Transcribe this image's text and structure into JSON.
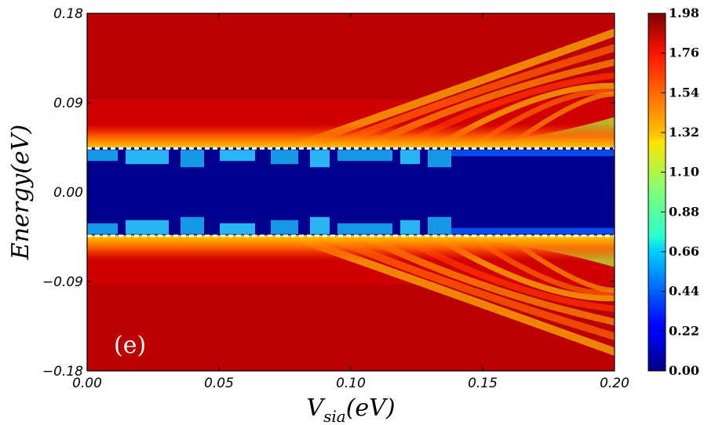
{
  "chart_data": {
    "type": "heatmap",
    "panel_label": "(e)",
    "xlabel": "V_sia(eV)",
    "xlabel_main": "V",
    "xlabel_sub": "sia",
    "xlabel_suffix": "(eV)",
    "ylabel": "Energy(eV)",
    "xlim": [
      0.0,
      0.2
    ],
    "ylim": [
      -0.18,
      0.18
    ],
    "x_ticks": [
      "0.00",
      "0.05",
      "0.10",
      "0.15",
      "0.20"
    ],
    "y_ticks": [
      "0.18",
      "0.09",
      "0.00",
      "−0.09",
      "−0.18"
    ],
    "colorbar": {
      "colormap": "jet",
      "range": [
        0.0,
        1.98
      ],
      "ticks": [
        "1.98",
        "1.76",
        "1.54",
        "1.32",
        "1.10",
        "0.88",
        "0.66",
        "0.44",
        "0.22",
        "0.00"
      ]
    },
    "gap_edges_energy": [
      0.044,
      -0.044
    ],
    "gap_line_color": "#ffffff",
    "background_value": 1.95,
    "gap_value": 0.0
  }
}
